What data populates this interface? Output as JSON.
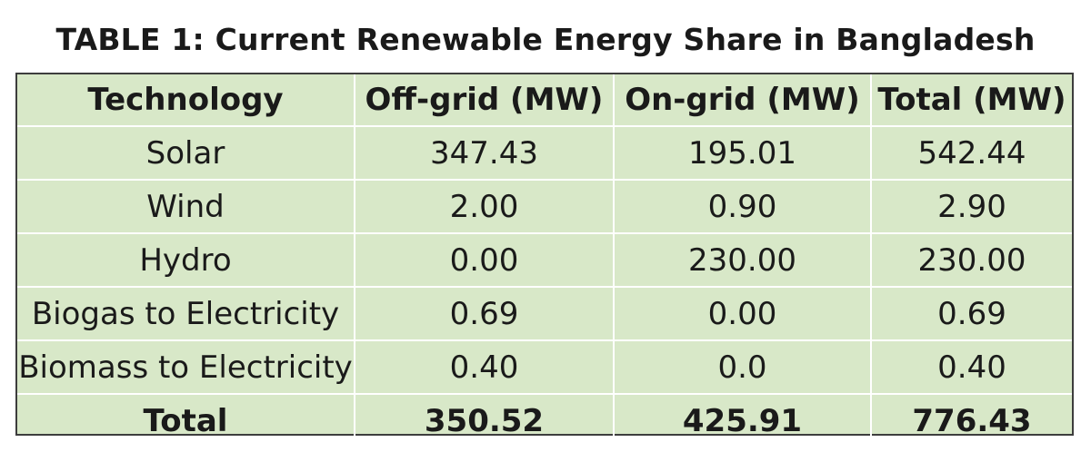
{
  "caption": "TABLE 1: Current Renewable Energy Share in Bangladesh",
  "table": {
    "headers": [
      "Technology",
      "Off-grid (MW)",
      "On-grid (MW)",
      "Total (MW)"
    ],
    "rows": [
      [
        "Solar",
        "347.43",
        "195.01",
        "542.44"
      ],
      [
        "Wind",
        "2.00",
        "0.90",
        "2.90"
      ],
      [
        "Hydro",
        "0.00",
        "230.00",
        "230.00"
      ],
      [
        "Biogas to Electricity",
        "0.69",
        "0.00",
        "0.69"
      ],
      [
        "Biomass to Electricity",
        "0.40",
        "0.0",
        "0.40"
      ]
    ],
    "total_row": [
      "Total",
      "350.52",
      "425.91",
      "776.43"
    ]
  },
  "colors": {
    "cell_background": "#d8e8c8",
    "grid_lines": "#ffffff",
    "outer_border": "#3d3d3d",
    "text": "#1a1a1a"
  }
}
